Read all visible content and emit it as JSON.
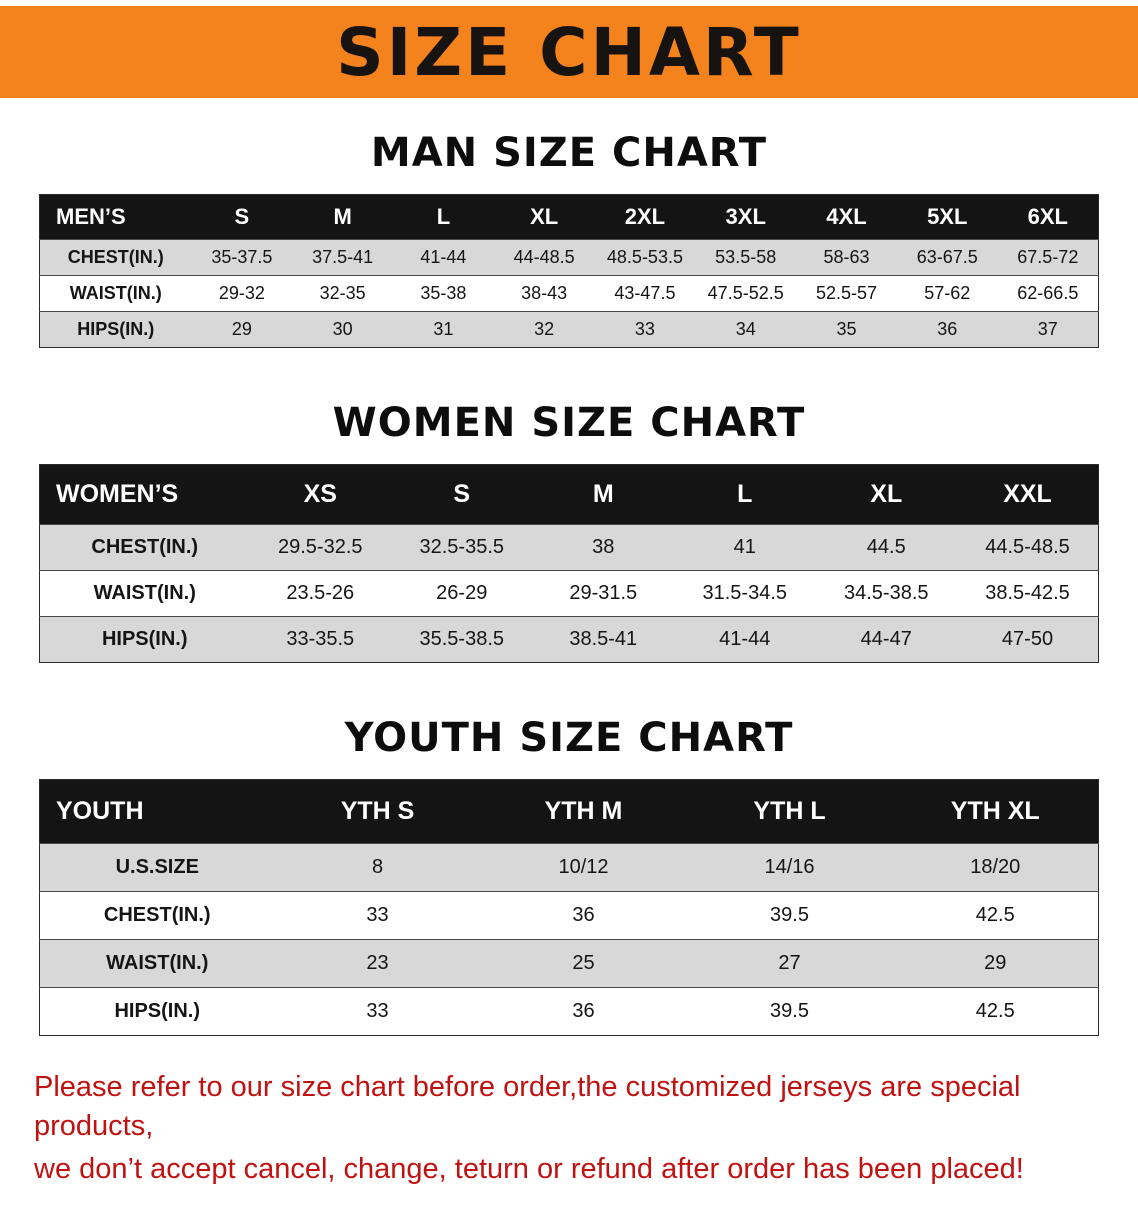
{
  "banner": {
    "title": "SIZE CHART"
  },
  "colors": {
    "banner_bg": "#f5831d",
    "table_header_bg": "#141414",
    "table_header_text": "#ffffff",
    "row_stripe": "#d8d8d8",
    "disclaimer_text": "#c11212"
  },
  "sections": [
    {
      "id": "men",
      "heading": "MAN SIZE CHART",
      "table": {
        "label": "MEN’S",
        "columns": [
          "S",
          "M",
          "L",
          "XL",
          "2XL",
          "3XL",
          "4XL",
          "5XL",
          "6XL"
        ],
        "rows": [
          {
            "label": "CHEST(IN.)",
            "values": [
              "35-37.5",
              "37.5-41",
              "41-44",
              "44-48.5",
              "48.5-53.5",
              "53.5-58",
              "58-63",
              "63-67.5",
              "67.5-72"
            ]
          },
          {
            "label": "WAIST(IN.)",
            "values": [
              "29-32",
              "32-35",
              "35-38",
              "38-43",
              "43-47.5",
              "47.5-52.5",
              "52.5-57",
              "57-62",
              "62-66.5"
            ]
          },
          {
            "label": "HIPS(IN.)",
            "values": [
              "29",
              "30",
              "31",
              "32",
              "33",
              "34",
              "35",
              "36",
              "37"
            ]
          }
        ]
      }
    },
    {
      "id": "women",
      "heading": "WOMEN SIZE CHART",
      "table": {
        "label": "WOMEN’S",
        "columns": [
          "XS",
          "S",
          "M",
          "L",
          "XL",
          "XXL"
        ],
        "rows": [
          {
            "label": "CHEST(IN.)",
            "values": [
              "29.5-32.5",
              "32.5-35.5",
              "38",
              "41",
              "44.5",
              "44.5-48.5"
            ]
          },
          {
            "label": "WAIST(IN.)",
            "values": [
              "23.5-26",
              "26-29",
              "29-31.5",
              "31.5-34.5",
              "34.5-38.5",
              "38.5-42.5"
            ]
          },
          {
            "label": "HIPS(IN.)",
            "values": [
              "33-35.5",
              "35.5-38.5",
              "38.5-41",
              "41-44",
              "44-47",
              "47-50"
            ]
          }
        ]
      }
    },
    {
      "id": "youth",
      "heading": "YOUTH SIZE CHART",
      "table": {
        "label": "YOUTH",
        "columns": [
          "YTH S",
          "YTH M",
          "YTH L",
          "YTH XL"
        ],
        "rows": [
          {
            "label": "U.S.SIZE",
            "values": [
              "8",
              "10/12",
              "14/16",
              "18/20"
            ]
          },
          {
            "label": "CHEST(IN.)",
            "values": [
              "33",
              "36",
              "39.5",
              "42.5"
            ]
          },
          {
            "label": "WAIST(IN.)",
            "values": [
              "23",
              "25",
              "27",
              "29"
            ]
          },
          {
            "label": "HIPS(IN.)",
            "values": [
              "33",
              "36",
              "39.5",
              "42.5"
            ]
          }
        ]
      }
    }
  ],
  "disclaimer": {
    "line1": "Please refer to our size chart before order,the customized jerseys are special products,",
    "line2": "we don’t accept cancel, change, teturn or refund after order has been placed!"
  }
}
